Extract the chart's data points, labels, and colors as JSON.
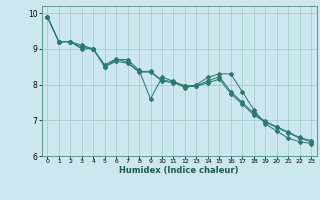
{
  "title": "",
  "xlabel": "Humidex (Indice chaleur)",
  "ylabel": "",
  "background_color": "#cce8ee",
  "grid_color": "#aacccc",
  "line_color": "#2a7a6e",
  "xlim": [
    -0.5,
    23.5
  ],
  "ylim": [
    6,
    10.2
  ],
  "yticks": [
    6,
    7,
    8,
    9,
    10
  ],
  "xticks": [
    0,
    1,
    2,
    3,
    4,
    5,
    6,
    7,
    8,
    9,
    10,
    11,
    12,
    13,
    14,
    15,
    16,
    17,
    18,
    19,
    20,
    21,
    22,
    23
  ],
  "series1": [
    9.9,
    9.2,
    9.2,
    9.1,
    9.0,
    8.5,
    8.7,
    8.7,
    8.4,
    7.6,
    8.2,
    8.1,
    7.9,
    8.0,
    8.2,
    8.3,
    8.3,
    7.8,
    7.3,
    6.9,
    6.7,
    6.5,
    6.4,
    6.35
  ],
  "series2": [
    9.9,
    9.2,
    9.2,
    9.0,
    9.0,
    8.5,
    8.65,
    8.6,
    8.35,
    8.35,
    8.1,
    8.05,
    7.95,
    7.95,
    8.05,
    8.15,
    7.75,
    7.45,
    7.15,
    6.95,
    6.8,
    6.65,
    6.5,
    6.4
  ],
  "series3": [
    9.9,
    9.2,
    9.2,
    9.05,
    9.0,
    8.55,
    8.72,
    8.62,
    8.37,
    8.37,
    8.12,
    8.08,
    7.97,
    7.97,
    8.1,
    8.22,
    7.8,
    7.5,
    7.2,
    6.97,
    6.82,
    6.67,
    6.52,
    6.43
  ]
}
